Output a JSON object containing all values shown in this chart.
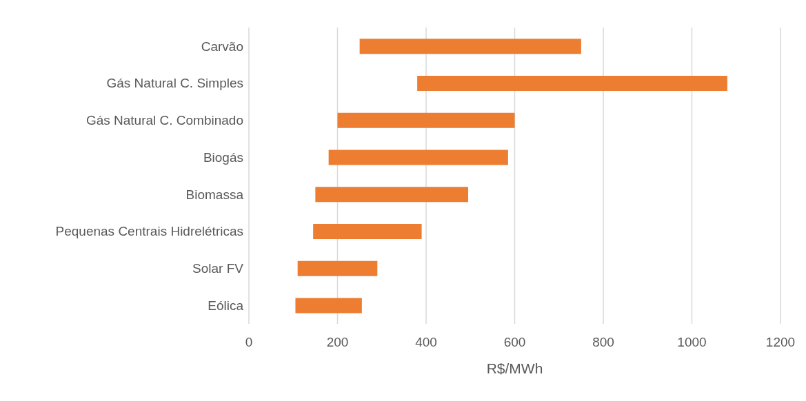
{
  "chart_data": {
    "type": "bar",
    "orientation": "horizontal",
    "xlabel": "R$/MWh",
    "categories": [
      "Carvão",
      "Gás Natural C. Simples",
      "Gás Natural C. Combinado",
      "Biogás",
      "Biomassa",
      "Pequenas Centrais Hidrelétricas",
      "Solar FV",
      "Eólica"
    ],
    "base": [
      250,
      380,
      200,
      180,
      150,
      145,
      110,
      105
    ],
    "values": [
      500,
      700,
      400,
      405,
      345,
      245,
      180,
      150
    ],
    "color": "#ed7d31",
    "xlim": [
      0,
      1200
    ],
    "xticks": [
      0,
      200,
      400,
      600,
      800,
      1000,
      1200
    ],
    "grid": "x"
  }
}
